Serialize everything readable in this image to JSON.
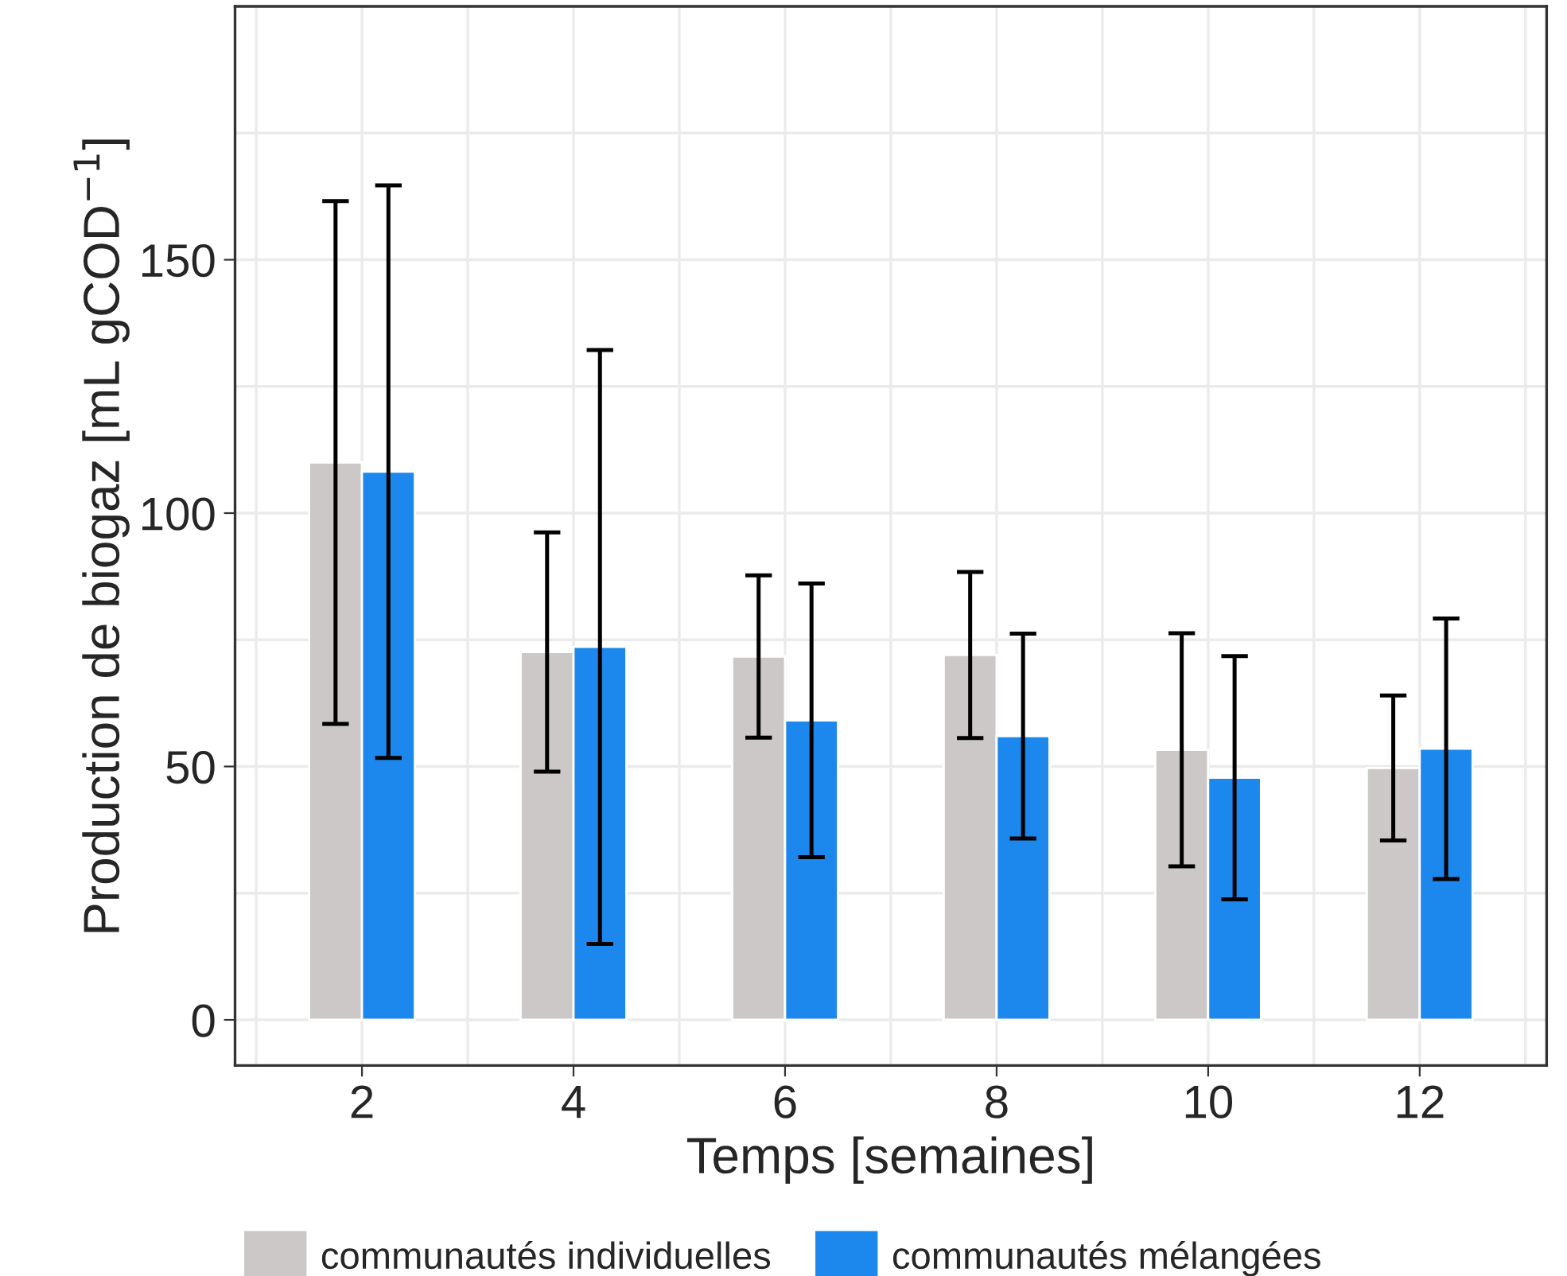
{
  "chart_data": {
    "type": "bar",
    "xlabel": "Temps [semaines]",
    "ylabel": "Production de biogaz [mL gCOD$^{−1}$]",
    "x": [
      2,
      4,
      6,
      8,
      10,
      12
    ],
    "series": [
      {
        "name": "communautés individuelles",
        "color": "#cbc8c7",
        "values": [
          110,
          72.6,
          71.7,
          72,
          53.3,
          49.7
        ],
        "errors": [
          51.6,
          23.6,
          16,
          16.4,
          23,
          14.3
        ]
      },
      {
        "name": "communautés mélangées",
        "color": "#1c87ec",
        "values": [
          108.2,
          73.6,
          59.1,
          56,
          47.8,
          53.5
        ],
        "errors": [
          56.5,
          58.6,
          27,
          20.2,
          24,
          25.7
        ]
      }
    ],
    "xlim": [
      0.8,
      13.2
    ],
    "xticks": [
      2,
      4,
      6,
      8,
      10,
      12
    ],
    "ylim": [
      -9,
      200
    ],
    "yticks": [
      0,
      50,
      100,
      150
    ],
    "grid": true,
    "legend": "bottom"
  }
}
